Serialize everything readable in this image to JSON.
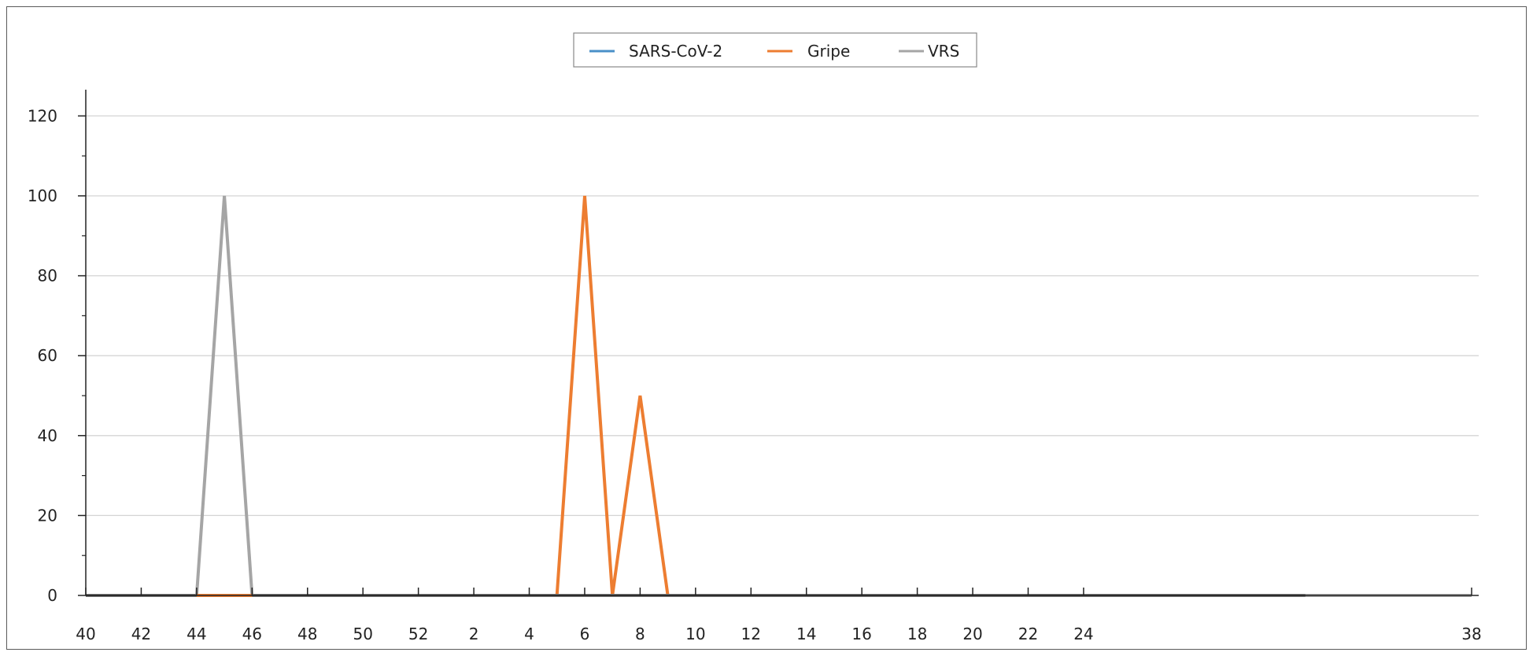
{
  "chart_data": {
    "type": "line",
    "title": "",
    "xlabel": "",
    "ylabel": "",
    "x_tick_labels": [
      "40",
      "42",
      "44",
      "46",
      "48",
      "50",
      "52",
      "2",
      "4",
      "6",
      "8",
      "10",
      "12",
      "14",
      "16",
      "18",
      "20",
      "22",
      "24",
      "38"
    ],
    "y_ticks": [
      "0",
      "20",
      "40",
      "60",
      "80",
      "100",
      "120"
    ],
    "ylim": [
      0,
      125
    ],
    "x": [
      "40",
      "41",
      "42",
      "43",
      "44",
      "45",
      "46",
      "47",
      "48",
      "49",
      "50",
      "51",
      "52",
      "1",
      "2",
      "3",
      "4",
      "5",
      "6",
      "7",
      "8",
      "9",
      "10",
      "11",
      "12",
      "13",
      "14",
      "15",
      "16",
      "17",
      "18",
      "19",
      "20",
      "21",
      "22",
      "23",
      "24",
      "25",
      "26",
      "27",
      "28",
      "29",
      "30",
      "31",
      "32",
      "33",
      "34",
      "35",
      "36",
      "37",
      "38"
    ],
    "grid": "horizontal",
    "legend_position": "top-center",
    "series": [
      {
        "name": "SARS-CoV-2",
        "color": "#4a90c8",
        "values": [
          0,
          0,
          0,
          0,
          0,
          0,
          0,
          0,
          0,
          0,
          0,
          0,
          0,
          0,
          0,
          0,
          0,
          0,
          0,
          0,
          0,
          0,
          0,
          0,
          0,
          0,
          0,
          0,
          0,
          0,
          0,
          0,
          0,
          0,
          0,
          0,
          0,
          0,
          0,
          0,
          0,
          0,
          0,
          0,
          0,
          0,
          0,
          0,
          0,
          0,
          0
        ]
      },
      {
        "name": "Gripe",
        "color": "#ed7d31",
        "values": [
          0,
          0,
          0,
          0,
          0,
          0,
          0,
          0,
          0,
          0,
          0,
          0,
          0,
          0,
          0,
          0,
          0,
          0,
          100,
          0,
          50,
          0,
          0,
          0,
          0,
          0,
          0,
          0,
          0,
          0,
          0,
          0,
          0,
          0,
          0,
          0,
          0,
          0,
          0,
          0,
          0,
          0,
          0,
          0,
          0,
          0,
          0,
          0,
          0,
          0,
          0
        ]
      },
      {
        "name": "VRS",
        "color": "#a5a5a5",
        "values": [
          0,
          0,
          0,
          0,
          0,
          100,
          0,
          0,
          0,
          0,
          0,
          0,
          0,
          0,
          0,
          0,
          0,
          0,
          0,
          0,
          0,
          0,
          0,
          0,
          0,
          0,
          0,
          0,
          0,
          0,
          0,
          0,
          0,
          0,
          0,
          0,
          0,
          0,
          0,
          0,
          0,
          0,
          0,
          0,
          0,
          0,
          0,
          0,
          0,
          0,
          0
        ]
      }
    ]
  }
}
